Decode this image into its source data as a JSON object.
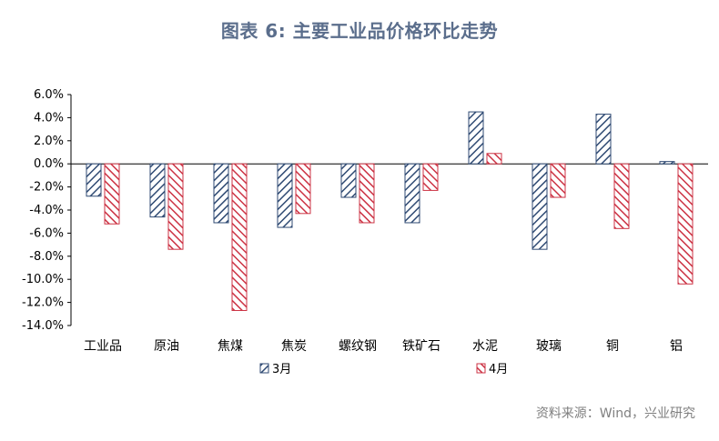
{
  "header": {
    "title": "图表 6:   主要工业品价格环比走势"
  },
  "footer": {
    "source": "资料来源：Wind，兴业研究"
  },
  "chart_data": {
    "type": "bar",
    "title": "图表 6:   主要工业品价格环比走势",
    "categories": [
      "工业品",
      "原油",
      "焦煤",
      "焦炭",
      "螺纹钢",
      "铁矿石",
      "水泥",
      "玻璃",
      "铜",
      "铝"
    ],
    "series": [
      {
        "name": "3月",
        "values": [
          -2.8,
          -4.6,
          -5.1,
          -5.5,
          -2.9,
          -5.1,
          4.5,
          -7.4,
          4.3,
          0.2
        ],
        "color": "#2f4a73"
      },
      {
        "name": "4月",
        "values": [
          -5.2,
          -7.4,
          -12.7,
          -4.3,
          -5.1,
          -2.3,
          0.9,
          -2.9,
          -5.6,
          -10.4
        ],
        "color": "#cc3344"
      }
    ],
    "ylim": [
      -14,
      6
    ],
    "yticks": [
      "6.0%",
      "4.0%",
      "2.0%",
      "0.0%",
      "-2.0%",
      "-4.0%",
      "-6.0%",
      "-8.0%",
      "-10.0%",
      "-12.0%",
      "-14.0%"
    ],
    "legend_position": "bottom",
    "grid": false
  }
}
